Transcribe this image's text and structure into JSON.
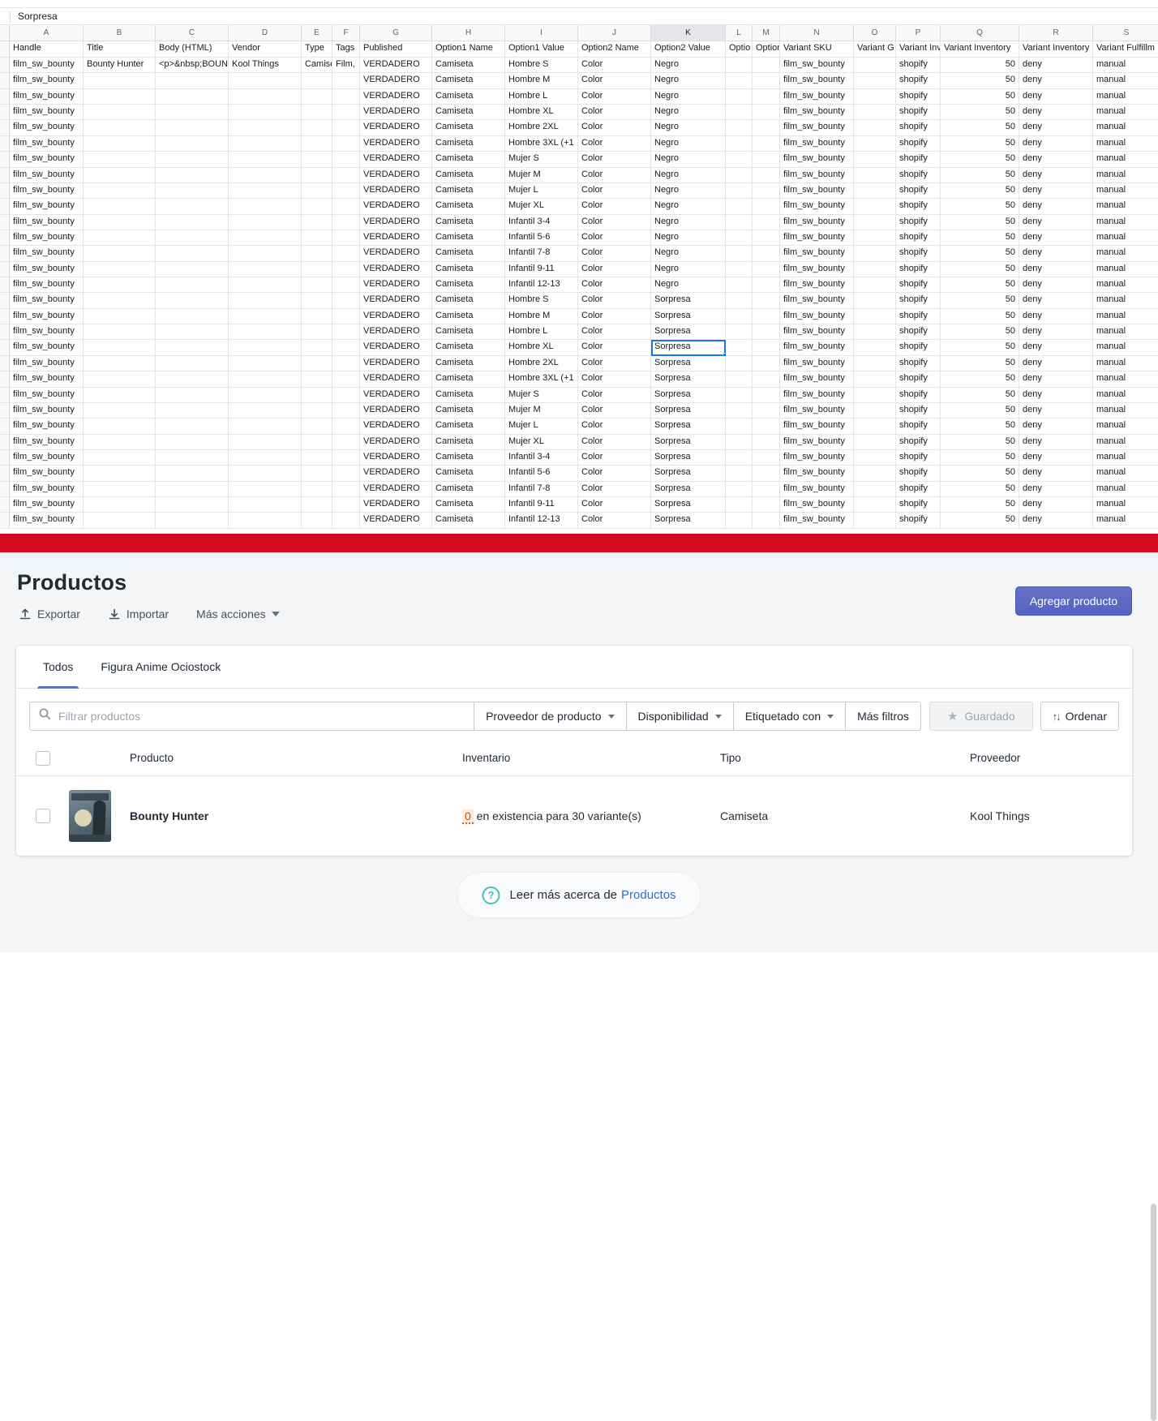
{
  "spreadsheet": {
    "formula_bar_value": "Sorpresa",
    "column_letters": [
      "A",
      "B",
      "C",
      "D",
      "E",
      "F",
      "G",
      "H",
      "I",
      "J",
      "K",
      "L",
      "M",
      "N",
      "O",
      "P",
      "Q",
      "R",
      "S"
    ],
    "selected_column_index": 10,
    "field_names": [
      "Handle",
      "Title",
      "Body (HTML)",
      "Vendor",
      "Type",
      "Tags",
      "Published",
      "Option1 Name",
      "Option1 Value",
      "Option2 Name",
      "Option2 Value",
      "Optio",
      "Option",
      "Variant SKU",
      "Variant G",
      "Variant Inv",
      "Variant Inventory",
      "Variant Inventory",
      "Variant Fulfillm"
    ],
    "handle": "film_sw_bounty",
    "first_row_extras": {
      "title": "Bounty Hunter",
      "body_html": "<p>&nbsp;BOUN",
      "vendor": "Kool Things",
      "type": "Camiseta",
      "tags": "Film,"
    },
    "published": "VERDADERO",
    "option1_name": "Camiseta",
    "option2_name": "Color",
    "sizes": [
      "Hombre S",
      "Hombre M",
      "Hombre L",
      "Hombre XL",
      "Hombre 2XL",
      "Hombre 3XL (+1",
      "Mujer S",
      "Mujer M",
      "Mujer L",
      "Mujer XL",
      "Infantil 3-4",
      "Infantil 5-6",
      "Infantil 7-8",
      "Infantil 9-11",
      "Infantil 12-13"
    ],
    "colors": [
      "Negro",
      "Sorpresa"
    ],
    "variant_sku": "film_sw_bounty",
    "inventory_tracker": "shopify",
    "inventory_qty": "50",
    "inventory_policy": "deny",
    "fulfillment_service": "manual",
    "selected_cell": {
      "row_index": 18,
      "col_index": 10,
      "value": "Sorpresa"
    }
  },
  "admin": {
    "title": "Productos",
    "actions": {
      "export": "Exportar",
      "import": "Importar",
      "more": "Más acciones"
    },
    "primary_button": "Agregar producto",
    "tabs": [
      {
        "label": "Todos",
        "active": true
      },
      {
        "label": "Figura Anime Ociostock",
        "active": false
      }
    ],
    "search_placeholder": "Filtrar productos",
    "filters": {
      "vendor": "Proveedor de producto",
      "availability": "Disponibilidad",
      "tagged": "Etiquetado con",
      "more": "Más filtros"
    },
    "saved_button": "Guardado",
    "sort_button": "Ordenar",
    "table": {
      "columns": {
        "product": "Producto",
        "inventory": "Inventario",
        "type": "Tipo",
        "vendor": "Proveedor"
      },
      "row": {
        "product": "Bounty Hunter",
        "inventory_count": "0",
        "inventory_text": " en existencia para 30 variante(s)",
        "type": "Camiseta",
        "vendor": "Kool Things"
      }
    },
    "footer": {
      "prefix": "Leer más acerca de ",
      "link": "Productos",
      "icon": "question-mark-icon"
    },
    "colors": {
      "accent": "#5c6ac4",
      "red_bar": "#d60b1e",
      "link": "#2a6fc9",
      "teal": "#47c1bf",
      "warning_text": "#c05717",
      "warning_bg": "#fcebdb",
      "selection_blue": "#1a73e8"
    }
  }
}
